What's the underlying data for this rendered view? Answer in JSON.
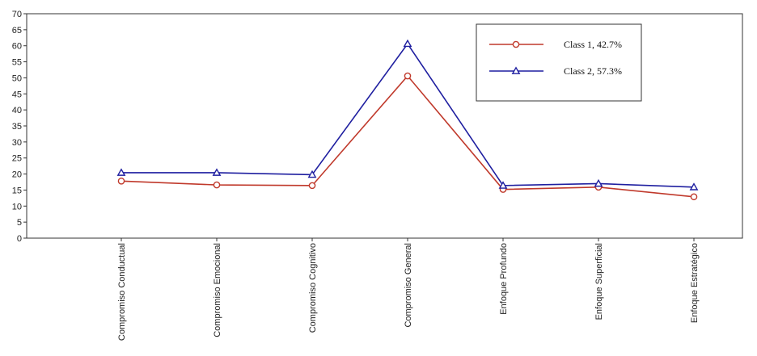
{
  "chart_data": {
    "type": "line",
    "categories": [
      "Compromiso Conductual",
      "Compromiso Emocional",
      "Compromiso Cognitivo",
      "Compromiso General",
      "Enfoque Profundo",
      "Enfoque Superficial",
      "Enfoque Estratégico"
    ],
    "series": [
      {
        "name": "Class 1, 42.7%",
        "color": "#c0392b",
        "marker": "circle",
        "values": [
          17.8,
          16.6,
          16.4,
          50.6,
          15.2,
          15.9,
          12.9
        ]
      },
      {
        "name": "Class 2, 57.3%",
        "color": "#1f1fa0",
        "marker": "triangle",
        "values": [
          20.4,
          20.4,
          19.8,
          60.6,
          16.4,
          17.0,
          15.9
        ]
      }
    ],
    "ylim": [
      0,
      70
    ],
    "yticks": [
      0,
      5,
      10,
      15,
      20,
      25,
      30,
      35,
      40,
      45,
      50,
      55,
      60,
      65,
      70
    ],
    "grid": false,
    "legend": "top-right"
  }
}
